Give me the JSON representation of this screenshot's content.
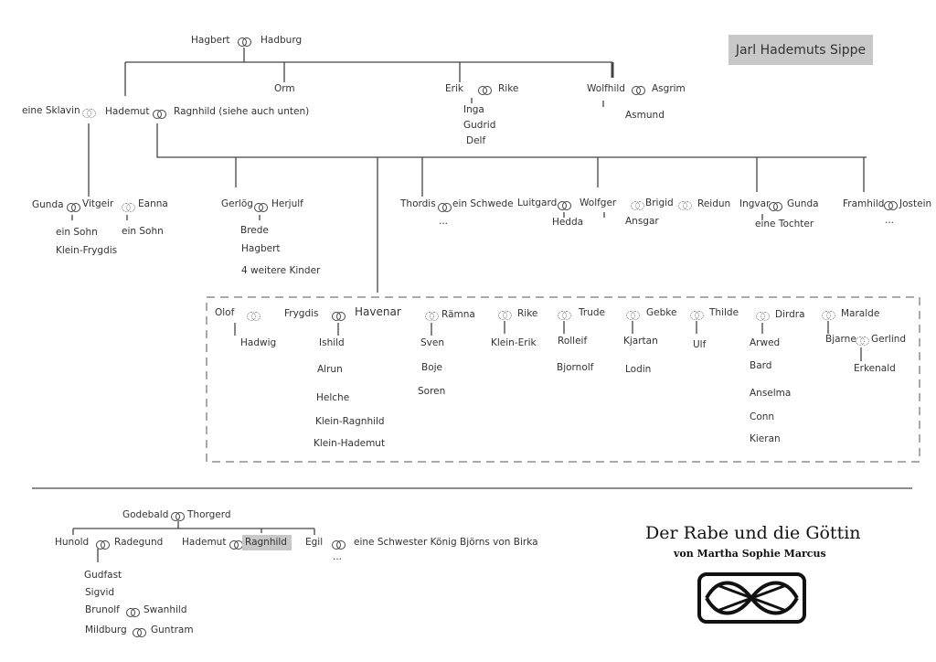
{
  "title": "Jarl Hademuts Sippe",
  "book": {
    "title": "Der Rabe und die Göttin",
    "author": "von Martha Sophie Marcus"
  },
  "legend_icons": {
    "married": "double-ring-icon",
    "partner": "dotted-double-ring-icon",
    "logo": "celtic-knot-icon"
  },
  "top": {
    "hagbert": "Hagbert",
    "hadburg": "Hadburg",
    "orm": "Orm",
    "erik": "Erik",
    "rike": "Rike",
    "inga": "Inga",
    "gudrid": "Gudrid",
    "delf": "Delf",
    "wolfhild": "Wolfhild",
    "asgrim": "Asgrim",
    "asmund": "Asmund"
  },
  "gen2": {
    "sklavin": "eine Sklavin",
    "hademut": "Hademut",
    "ragnhild": "Ragnhild (siehe auch unten)"
  },
  "gen3": {
    "gunda": "Gunda",
    "vitgeir": "Vitgeir",
    "eanna": "Eanna",
    "sohn1": "ein Sohn",
    "sohn2": "ein Sohn",
    "kleinfrygdis": "Klein-Frygdis",
    "gerlog": "Gerlög",
    "herjulf": "Herjulf",
    "brede": "Brede",
    "hagbert": "Hagbert",
    "weitere": "4 weitere Kinder",
    "thordis": "Thordis",
    "schwede": "ein Schwede",
    "thordis_more": "...",
    "luitgard": "Luitgard",
    "wolfger": "Wolfger",
    "hedda": "Hedda",
    "brigid": "Brigid",
    "reidun": "Reidun",
    "ansgar": "Ansgar",
    "ingvar": "Ingvar",
    "gunda2": "Gunda",
    "tochter": "eine Tochter",
    "framhild": "Framhild",
    "jostein": "Jostein",
    "framhild_more": "..."
  },
  "box": {
    "olof": "Olof",
    "hadwig": "Hadwig",
    "frygdis": "Frygdis",
    "havenar": "Havenar",
    "children": [
      "Ishild",
      "Alrun",
      "Helche",
      "Klein-Ragnhild",
      "Klein-Hademut"
    ],
    "ramna": "Rämna",
    "ramna_children": [
      "Sven",
      "Boje",
      "Soren"
    ],
    "rike": "Rike",
    "kleinerik": "Klein-Erik",
    "trude": "Trude",
    "trude_children": [
      "Rolleif",
      "Bjornolf"
    ],
    "gebke": "Gebke",
    "gebke_children": [
      "Kjartan",
      "Lodin"
    ],
    "thilde": "Thilde",
    "ulf": "Ulf",
    "dirdra": "Dirdra",
    "dirdra_children": [
      "Arwed",
      "Bard",
      "Anselma",
      "Conn",
      "Kieran"
    ],
    "maralde": "Maralde",
    "bjarne": "Bjarne",
    "gerlind": "Gerlind",
    "erkenald": "Erkenald"
  },
  "bottom": {
    "godebald": "Godebald",
    "thorgerd": "Thorgerd",
    "hunold": "Hunold",
    "radegund": "Radegund",
    "hademut": "Hademut",
    "ragnhild": "Ragnhild",
    "egil": "Egil",
    "schwester": "eine Schwester König Björns von Birka",
    "egil_more": "...",
    "gudfast": "Gudfast",
    "sigvid": "Sigvid",
    "brunolf": "Brunolf",
    "swanhild": "Swanhild",
    "mildburg": "Mildburg",
    "guntram": "Guntram"
  }
}
